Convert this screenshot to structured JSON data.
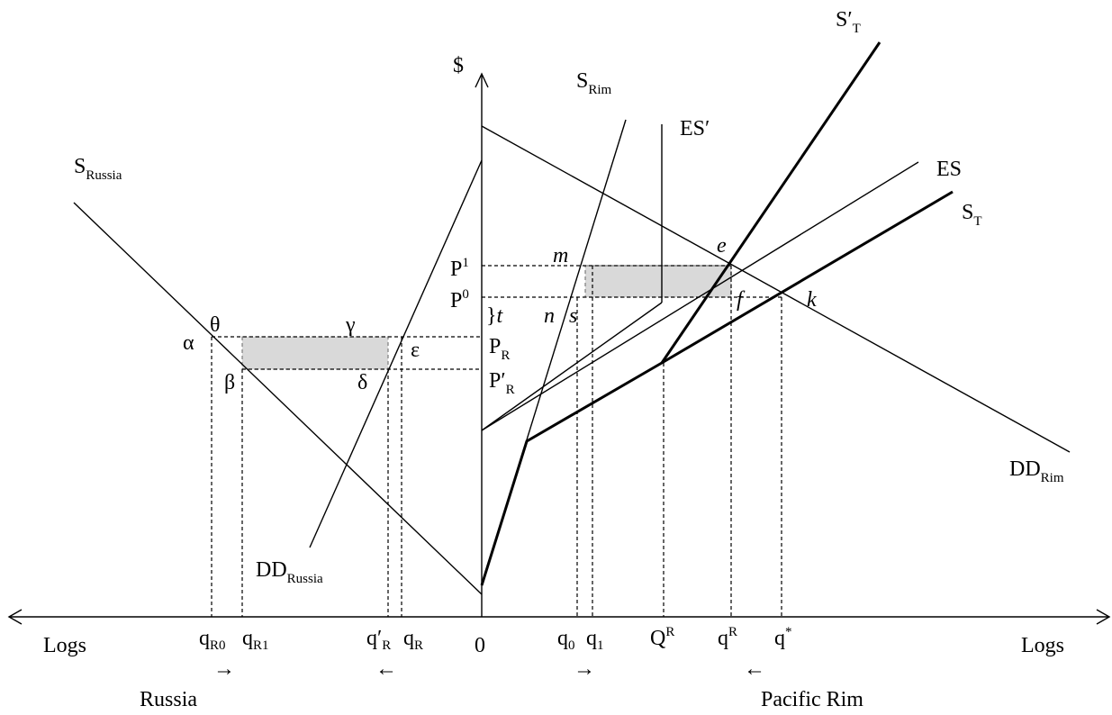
{
  "axes": {
    "y_label": "$",
    "origin": "0",
    "x_left": "Logs",
    "x_right": "Logs"
  },
  "regions": {
    "left": "Russia",
    "right": "Pacific Rim"
  },
  "curves": {
    "s_russia": {
      "base": "S",
      "sub": "Russia"
    },
    "dd_russia": {
      "base": "DD",
      "sub": "Russia"
    },
    "s_rim": {
      "base": "S",
      "sub": "Rim"
    },
    "es_prime": {
      "base": "ES′"
    },
    "s_t_prime": {
      "base": "S′",
      "sub": "T"
    },
    "es": {
      "base": "ES"
    },
    "s_t": {
      "base": "S",
      "sub": "T"
    },
    "dd_rim": {
      "base": "DD",
      "sub": "Rim"
    }
  },
  "prices": {
    "p1": {
      "base": "P",
      "sup": "1"
    },
    "p0": {
      "base": "P",
      "sup": "0"
    },
    "tariff": {
      "brace": "}",
      "base": "t"
    },
    "pr": {
      "base": "P",
      "sub": "R"
    },
    "pr_prime": {
      "base": "P′",
      "sub": "R"
    }
  },
  "points": {
    "alpha": "α",
    "theta": "θ",
    "gamma": "γ",
    "epsilon": "ε",
    "beta": "β",
    "delta": "δ",
    "m": "m",
    "n": "n",
    "s": "s",
    "e": "e",
    "f": "f",
    "k": "k"
  },
  "quantities": {
    "qR0": {
      "base": "q",
      "sub": "R0"
    },
    "qR1": {
      "base": "q",
      "sub": "R1"
    },
    "qR_prime": {
      "base": "q′",
      "sub": "R"
    },
    "qR": {
      "base": "q",
      "sub": "R"
    },
    "q0": {
      "base": "q",
      "sub": "0"
    },
    "q1": {
      "base": "q",
      "sub": "1"
    },
    "QR": {
      "base": "Q",
      "sup": "R"
    },
    "qR_upper": {
      "base": "q",
      "sup": "R"
    },
    "q_star": {
      "base": "q",
      "sup": "*"
    }
  },
  "arrows": {
    "russia_left": "→",
    "russia_right": "←",
    "rim_left": "→",
    "rim_right": "←"
  }
}
